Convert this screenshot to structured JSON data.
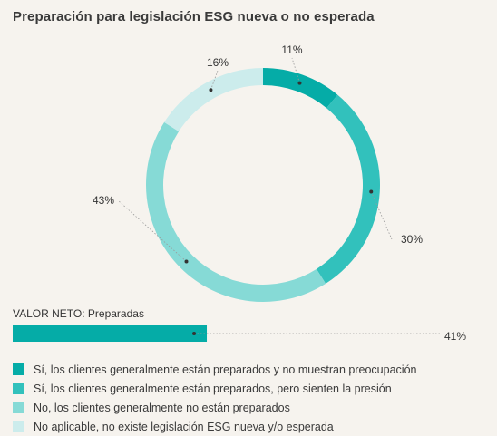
{
  "title": "Preparación para legislación ESG nueva o no esperada",
  "chart_data": {
    "type": "donut",
    "slices": [
      {
        "label": "Sí, los clientes generalmente están preparados y no muestran preocupación",
        "value": 11,
        "value_label": "11%",
        "color": "#05aca7"
      },
      {
        "label": "Sí, los clientes generalmente están preparados, pero sienten la presión",
        "value": 30,
        "value_label": "30%",
        "color": "#32c1bc"
      },
      {
        "label": "No, los clientes generalmente no están preparados",
        "value": 43,
        "value_label": "43%",
        "color": "#86dad6"
      },
      {
        "label": "No aplicable, no existe legislación ESG nueva y/o esperada",
        "value": 16,
        "value_label": "16%",
        "color": "#ccecec"
      }
    ],
    "net": {
      "label": "VALOR NETO: Preparadas",
      "value": 41,
      "value_label": "41%",
      "color": "#05aca7"
    }
  }
}
